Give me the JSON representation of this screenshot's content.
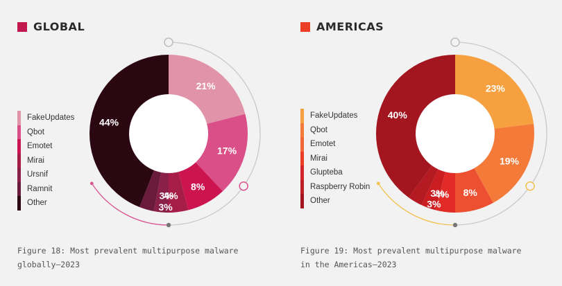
{
  "chart_data": [
    {
      "type": "pie",
      "title": "GLOBAL",
      "caption_line1": "Figure 18: Most prevalent multipurpose malware",
      "caption_line2": "globally—2023",
      "accent_color": "#c0184f",
      "arc_accent_color": "#d9558f",
      "categories": [
        "FakeUpdates",
        "Qbot",
        "Emotet",
        "Mirai",
        "Ursnif",
        "Ramnit",
        "Other"
      ],
      "values": [
        21,
        17,
        8,
        4,
        3,
        3,
        44
      ],
      "labels": [
        "21%",
        "17%",
        "8%",
        "4%",
        "3%",
        "3%",
        "44%"
      ],
      "colors": [
        "#e193a9",
        "#da4f87",
        "#cc1450",
        "#a61d48",
        "#8a1f48",
        "#6a1a3a",
        "#2b0712"
      ],
      "legend_colors": [
        "#e193a9",
        "#da4f87",
        "#cc1450",
        "#a61d48",
        "#8a1f48",
        "#6a1a3a",
        "#2b0712"
      ],
      "legend_placement": "left"
    },
    {
      "type": "pie",
      "title": "AMERICAS",
      "caption_line1": "Figure 19: Most prevalent multipurpose malware",
      "caption_line2": "in the Americas—2023",
      "accent_color": "#ea3f26",
      "arc_accent_color": "#f2c14e",
      "categories": [
        "FakeUpdates",
        "Qbot",
        "Emotet",
        "Mirai",
        "Glupteba",
        "Raspberry Robin",
        "Other"
      ],
      "values": [
        23,
        19,
        8,
        4,
        3,
        3,
        40
      ],
      "labels": [
        "23%",
        "19%",
        "8%",
        "4%",
        "3%",
        "3%",
        "40%"
      ],
      "colors": [
        "#f7a03f",
        "#f47a3a",
        "#ec5030",
        "#e22b27",
        "#c91d22",
        "#b51a22",
        "#a3161f"
      ],
      "legend_colors": [
        "#f7a03f",
        "#f47a3a",
        "#f2663a",
        "#ea3f26",
        "#d4262a",
        "#bc1f26",
        "#a3161f"
      ],
      "legend_placement": "left"
    }
  ]
}
